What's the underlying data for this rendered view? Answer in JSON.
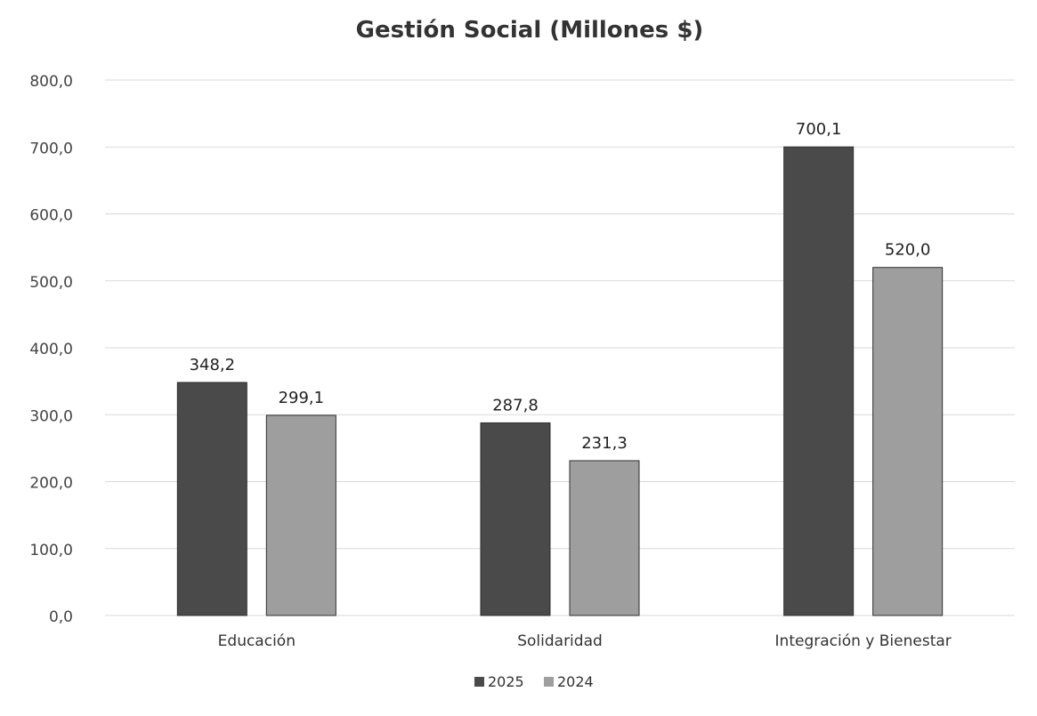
{
  "chart_data": {
    "type": "bar",
    "title": "Gestión Social (Millones $)",
    "xlabel": "",
    "ylabel": "",
    "categories": [
      "Educación",
      "Solidaridad",
      "Integración y Bienestar"
    ],
    "series": [
      {
        "name": "2025",
        "values": [
          348.2,
          287.8,
          700.1
        ],
        "labels": [
          "348,2",
          "287,8",
          "700,1"
        ],
        "color": "#4a4a4a"
      },
      {
        "name": "2024",
        "values": [
          299.1,
          231.3,
          520.0
        ],
        "labels": [
          "299,1",
          "231,3",
          "520,0"
        ],
        "color": "#9e9e9e"
      }
    ],
    "ylim": [
      0,
      800
    ],
    "yticks": [
      0,
      100,
      200,
      300,
      400,
      500,
      600,
      700,
      800
    ],
    "ytick_labels": [
      "0,0",
      "100,0",
      "200,0",
      "300,0",
      "400,0",
      "500,0",
      "600,0",
      "700,0",
      "800,0"
    ],
    "grid": true,
    "legend_position": "bottom"
  }
}
